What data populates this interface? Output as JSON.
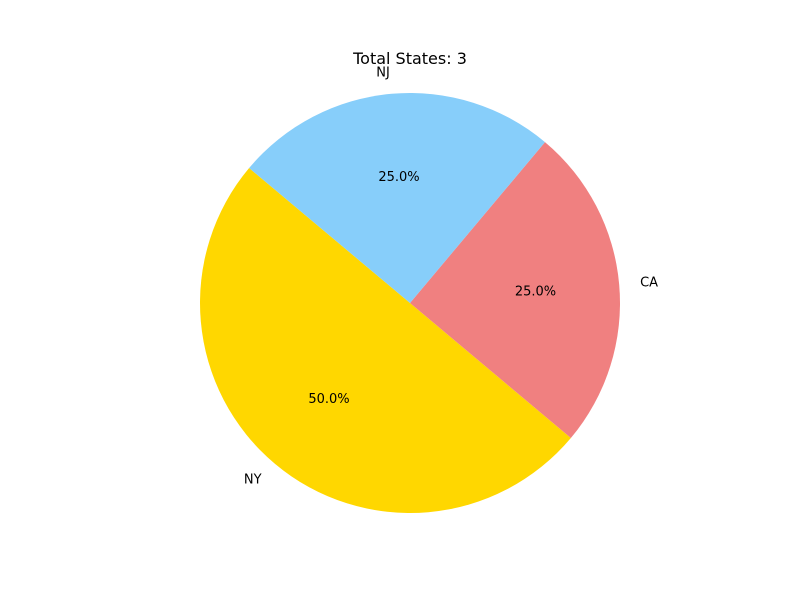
{
  "chart_data": {
    "type": "pie",
    "title": "Total States: 3",
    "slices": [
      {
        "label": "NY",
        "value": 50.0,
        "pct_label": "50.0%",
        "color": "#FFD700"
      },
      {
        "label": "CA",
        "value": 25.0,
        "pct_label": "25.0%",
        "color": "#F08080"
      },
      {
        "label": "NJ",
        "value": 25.0,
        "pct_label": "25.0%",
        "color": "#87CEFA"
      }
    ],
    "start_angle_deg": 140,
    "direction": "counterclockwise",
    "legend": "none"
  }
}
